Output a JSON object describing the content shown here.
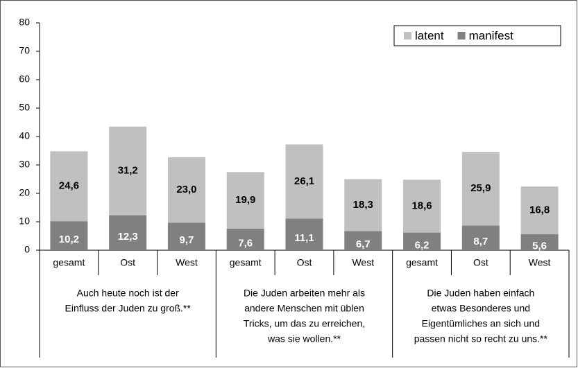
{
  "chart_data": {
    "type": "stacked_bar",
    "categories": [
      "gesamt",
      "Ost",
      "West",
      "gesamt",
      "Ost",
      "West",
      "gesamt",
      "Ost",
      "West"
    ],
    "groups": [
      [
        "Auch heute noch ist der",
        "Einfluss der Juden zu groß.**"
      ],
      [
        "Die Juden arbeiten mehr als",
        "andere Menschen mit üblen",
        "Tricks, um das zu erreichen,",
        "was sie wollen.**"
      ],
      [
        "Die Juden haben einfach",
        "etwas Besonderes und",
        "Eigentümliches an sich und",
        "passen nicht so recht zu uns.**"
      ]
    ],
    "series": [
      {
        "name": "manifest",
        "color": "#808080",
        "label_color": "#ffffff",
        "values": [
          10.2,
          12.3,
          9.7,
          7.6,
          11.1,
          6.7,
          6.2,
          8.7,
          5.6
        ],
        "value_labels": [
          "10,2",
          "12,3",
          "9,7",
          "7,6",
          "11,1",
          "6,7",
          "6,2",
          "8,7",
          "5,6"
        ]
      },
      {
        "name": "latent",
        "color": "#c0c0c0",
        "label_color": "#000000",
        "values": [
          24.6,
          31.2,
          23.0,
          19.9,
          26.1,
          18.3,
          18.6,
          25.9,
          16.8
        ],
        "value_labels": [
          "24,6",
          "31,2",
          "23,0",
          "19,9",
          "26,1",
          "18,3",
          "18,6",
          "25,9",
          "16,8"
        ]
      }
    ],
    "ylim": [
      0,
      80
    ],
    "yticks": [
      0,
      10,
      20,
      30,
      40,
      50,
      60,
      70,
      80
    ],
    "grid": false,
    "legend": "upper right"
  }
}
